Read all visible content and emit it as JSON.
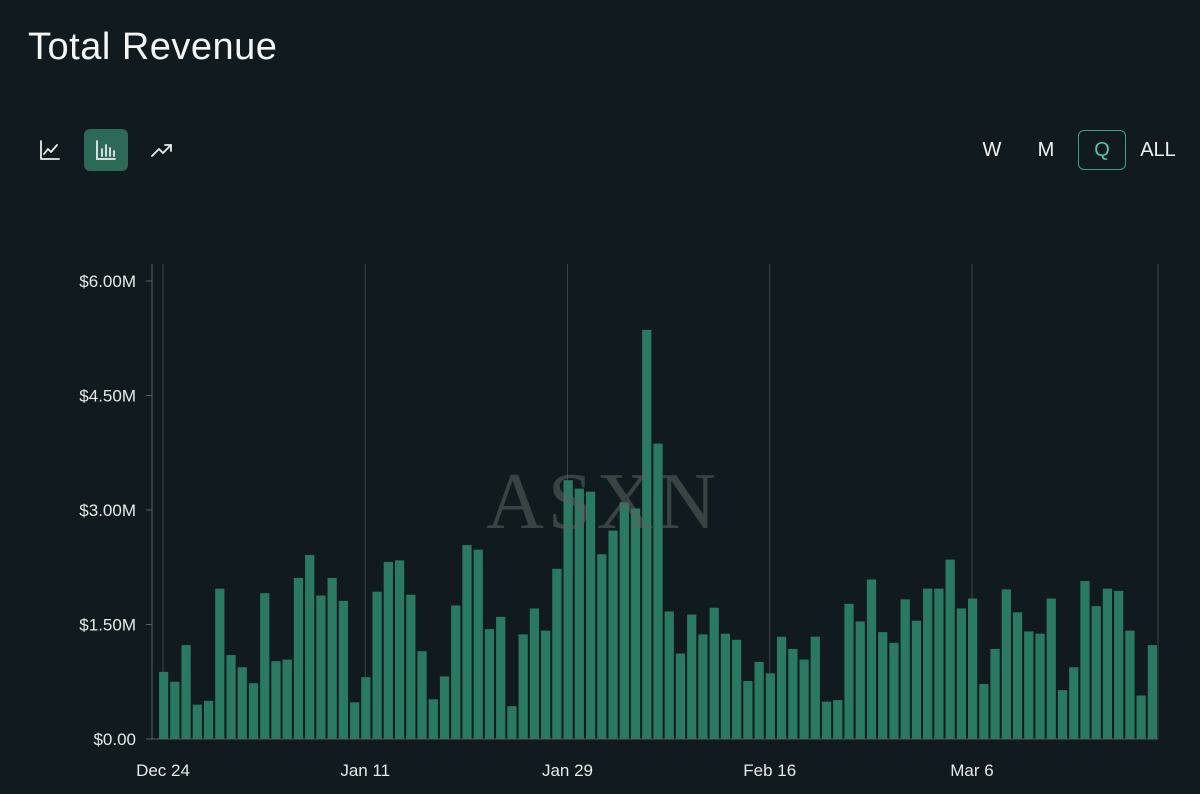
{
  "title": "Total Revenue",
  "chart_type_buttons": [
    {
      "icon": "line-chart-icon",
      "active": false
    },
    {
      "icon": "bar-chart-icon",
      "active": true
    },
    {
      "icon": "trend-arrow-icon",
      "active": false
    }
  ],
  "range_buttons": [
    {
      "label": "W",
      "active": false
    },
    {
      "label": "M",
      "active": false
    },
    {
      "label": "Q",
      "active": true
    },
    {
      "label": "ALL",
      "active": false
    }
  ],
  "colors": {
    "background": "#111b1f",
    "bar": "#2a7a63",
    "accent": "#3aa386",
    "active_button": "#2c6a57"
  },
  "watermark": "ASXN",
  "chart_data": {
    "type": "bar",
    "title": "Total Revenue",
    "xlabel": "",
    "ylabel": "",
    "ylim": [
      0,
      6000000
    ],
    "y_ticks": [
      0,
      1500000,
      3000000,
      4500000,
      6000000
    ],
    "y_tick_labels": [
      "$0.00",
      "$1.50M",
      "$3.00M",
      "$4.50M",
      "$6.00M"
    ],
    "x_tick_labels": [
      "Dec 24",
      "Jan 11",
      "Jan 29",
      "Feb 16",
      "Mar 6"
    ],
    "x_tick_indices": [
      0,
      18,
      36,
      54,
      72
    ],
    "grid": "vertical",
    "values": [
      880000,
      750000,
      1230000,
      450000,
      500000,
      1970000,
      1100000,
      940000,
      730000,
      1910000,
      1020000,
      1040000,
      2110000,
      2410000,
      1880000,
      2110000,
      1810000,
      480000,
      810000,
      1930000,
      2320000,
      2340000,
      1890000,
      1150000,
      520000,
      820000,
      1750000,
      2540000,
      2480000,
      1440000,
      1600000,
      430000,
      1370000,
      1710000,
      1420000,
      2230000,
      3390000,
      3280000,
      3240000,
      2420000,
      2730000,
      3100000,
      3020000,
      5360000,
      3870000,
      1670000,
      1120000,
      1630000,
      1370000,
      1720000,
      1380000,
      1300000,
      760000,
      1010000,
      860000,
      1340000,
      1180000,
      1040000,
      1340000,
      490000,
      510000,
      1770000,
      1540000,
      2090000,
      1400000,
      1260000,
      1830000,
      1550000,
      1970000,
      1970000,
      2350000,
      1710000,
      1840000,
      720000,
      1180000,
      1960000,
      1660000,
      1410000,
      1380000,
      1840000,
      640000,
      940000,
      2070000,
      1740000,
      1970000,
      1940000,
      1420000,
      570000,
      1230000
    ]
  }
}
